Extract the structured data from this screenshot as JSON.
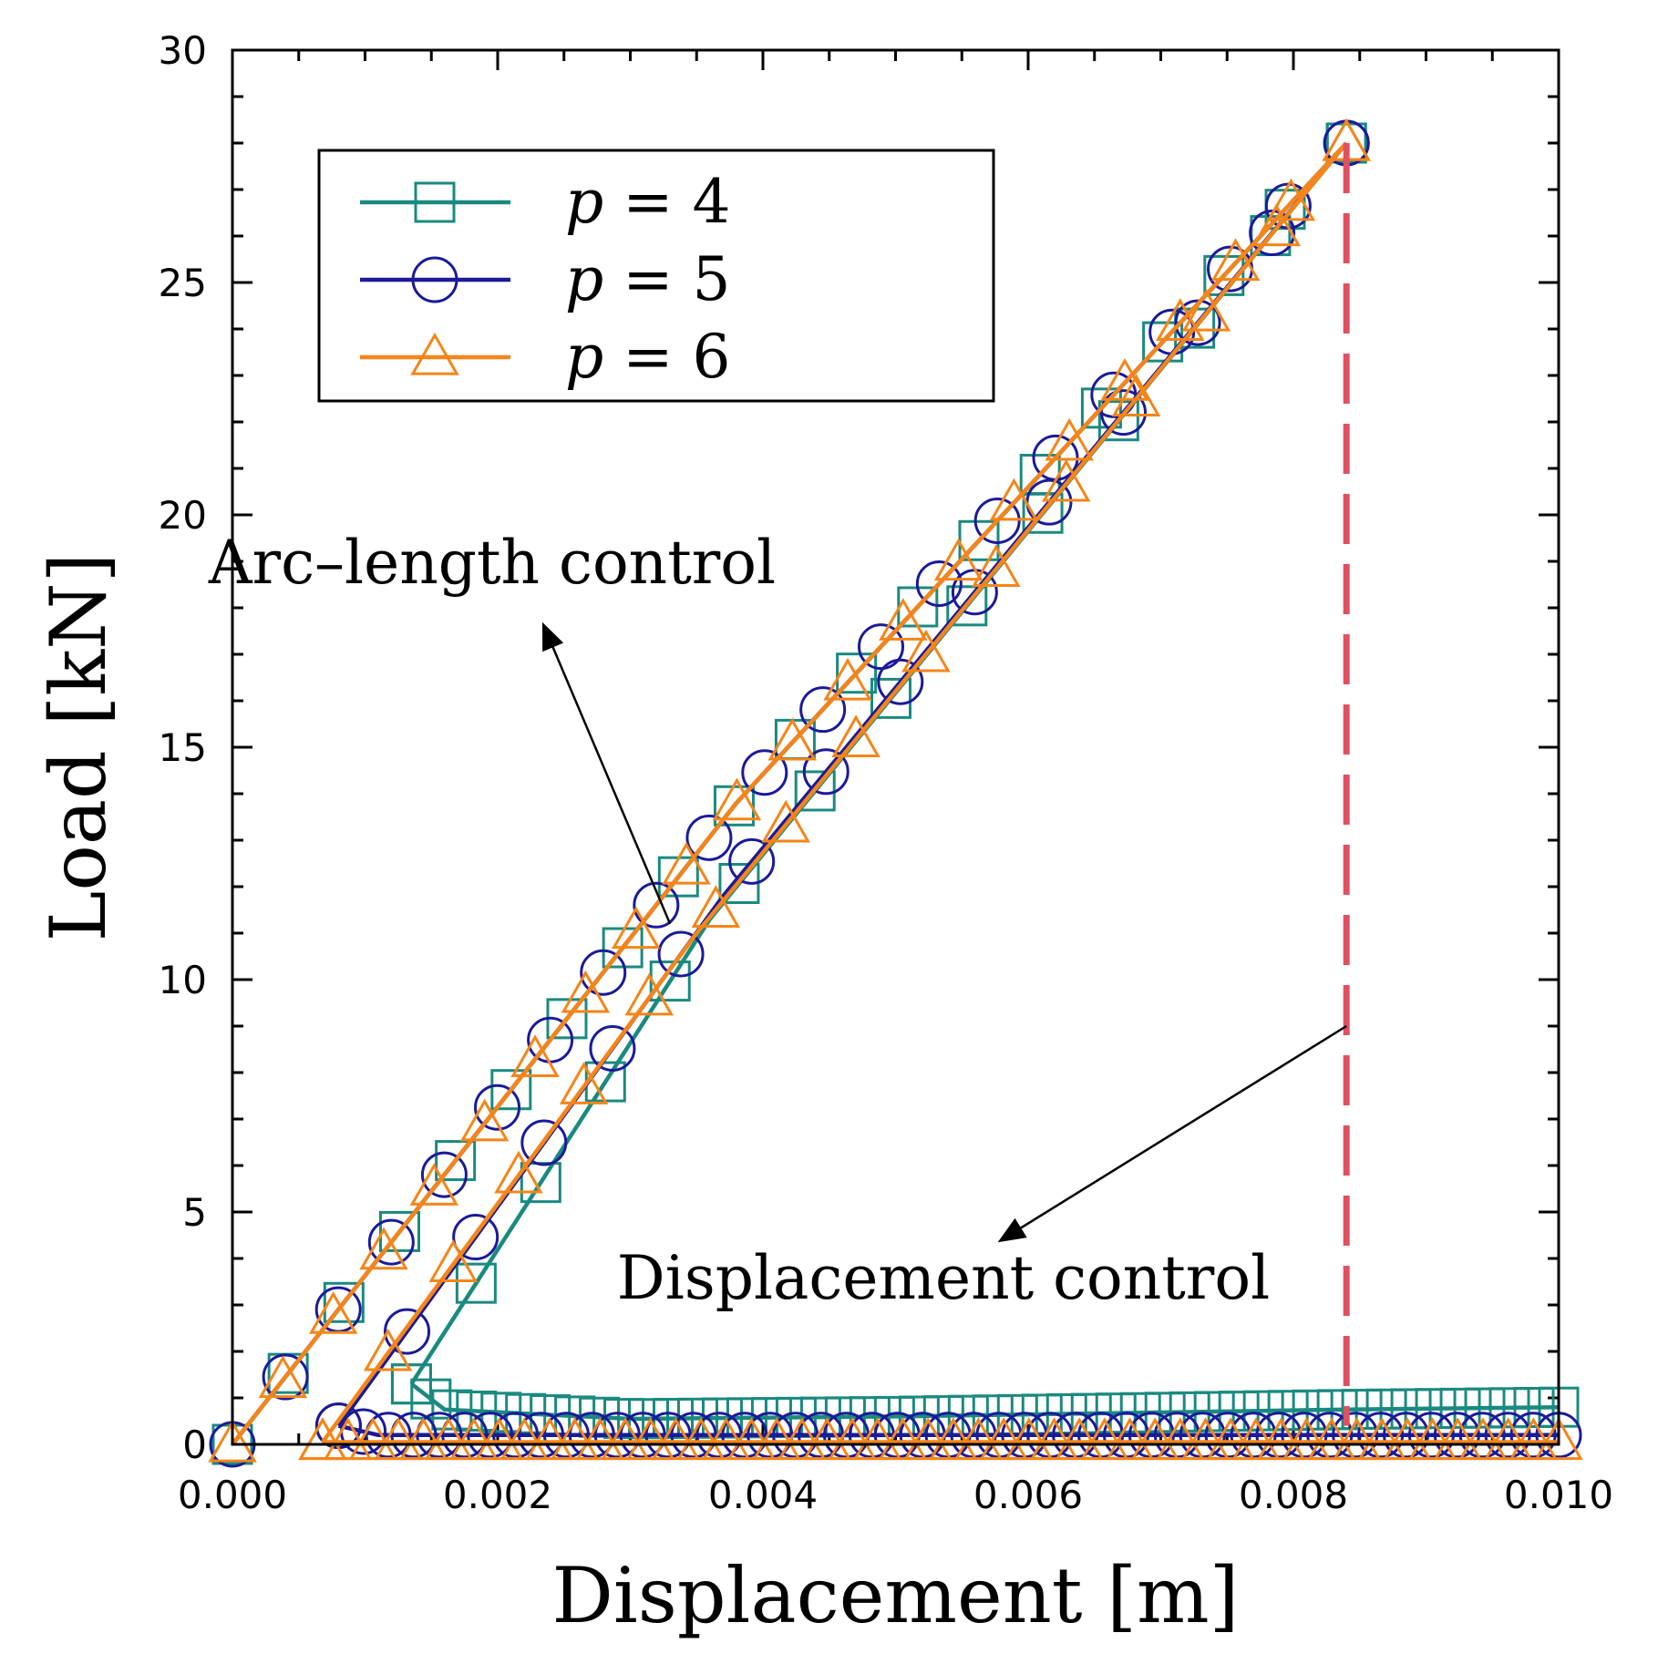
{
  "chart_data": {
    "type": "line",
    "xlabel": "Displacement [m]",
    "ylabel": "Load [kN]",
    "xlim": [
      0,
      0.01
    ],
    "ylim": [
      0,
      30
    ],
    "xticks": [
      "0.000",
      "0.002",
      "0.004",
      "0.006",
      "0.008",
      "0.010"
    ],
    "yticks": [
      "0",
      "5",
      "10",
      "15",
      "20",
      "25",
      "30"
    ],
    "legend_position": "top-left",
    "legend_var": "p",
    "legend_eq": "=",
    "series": [
      {
        "name": "p = 4",
        "value": "4",
        "color": "#1a8a80",
        "marker": "square",
        "segments": [
          [
            [
              0,
              0
            ],
            [
              0.0038,
              13.8
            ],
            [
              0.0084,
              28.0
            ]
          ],
          [
            [
              0.00135,
              1.3
            ],
            [
              0.0036,
              11.3
            ],
            [
              0.0084,
              28.0
            ]
          ],
          [
            [
              0.00135,
              1.3
            ],
            [
              0.0016,
              0.75
            ],
            [
              0.003,
              0.55
            ],
            [
              0.005,
              0.6
            ],
            [
              0.0084,
              0.75
            ],
            [
              0.01,
              0.8
            ]
          ]
        ]
      },
      {
        "name": "p = 5",
        "value": "5",
        "color": "#1a1a9a",
        "marker": "circle",
        "segments": [
          [
            [
              0,
              0
            ],
            [
              0.0038,
              13.8
            ],
            [
              0.0084,
              28.0
            ]
          ],
          [
            [
              0.0008,
              0.4
            ],
            [
              0.0037,
              11.8
            ],
            [
              0.0084,
              28.0
            ]
          ],
          [
            [
              0.0008,
              0.4
            ],
            [
              0.0011,
              0.2
            ],
            [
              0.003,
              0.2
            ],
            [
              0.006,
              0.2
            ],
            [
              0.01,
              0.2
            ]
          ]
        ]
      },
      {
        "name": "p = 6",
        "value": "6",
        "color": "#f58518",
        "marker": "triangle",
        "segments": [
          [
            [
              0,
              0
            ],
            [
              0.0038,
              13.8
            ],
            [
              0.0084,
              28.0
            ]
          ],
          [
            [
              0.00068,
              0.05
            ],
            [
              0.0035,
              11.0
            ],
            [
              0.0084,
              28.0
            ]
          ],
          [
            [
              0.00068,
              0.05
            ],
            [
              0.003,
              0.05
            ],
            [
              0.006,
              0.05
            ],
            [
              0.01,
              0.05
            ]
          ]
        ]
      }
    ],
    "reference_line": {
      "x": 0.0084,
      "y_range": [
        0.4,
        28.0
      ],
      "color": "#e0505f",
      "style": "dashed"
    },
    "annotations": [
      {
        "text": "Arc–length control",
        "arrow_from": [
          0.0033,
          11.2
        ],
        "arrow_to": [
          0.00235,
          17.6
        ]
      },
      {
        "text": "Displacement control",
        "arrow_from": [
          0.0084,
          9.0
        ],
        "arrow_to": [
          0.0058,
          4.4
        ]
      }
    ]
  }
}
